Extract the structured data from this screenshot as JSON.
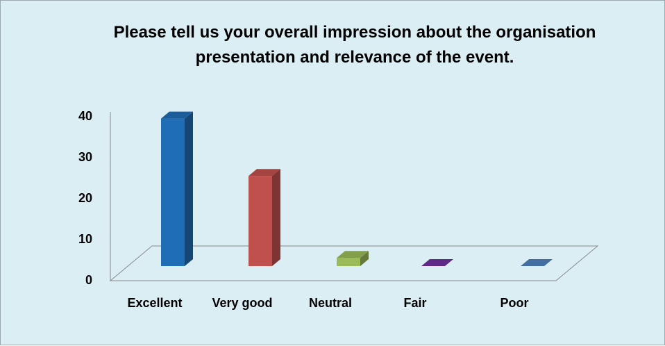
{
  "chart_data": {
    "type": "bar3d",
    "title": "Please tell us your overall impression about the organisation presentation and relevance of the event.",
    "categories": [
      "Excellent",
      "Very good",
      "Neutral",
      "Fair",
      "Poor"
    ],
    "values": [
      36,
      22,
      2,
      0,
      0
    ],
    "colors": [
      "#1f6db5",
      "#c0504d",
      "#9bbb59",
      "#7030a0",
      "#4f81bd"
    ],
    "ylim": [
      0,
      40
    ],
    "yticks": [
      0,
      10,
      20,
      30,
      40
    ],
    "grid": false
  }
}
